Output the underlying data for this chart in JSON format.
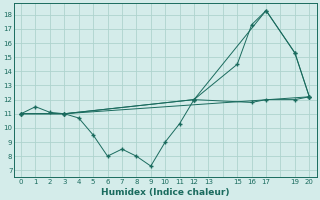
{
  "xlabel": "Humidex (Indice chaleur)",
  "bg_color": "#d4ecea",
  "grid_color": "#aed4ce",
  "line_color": "#1a6b5e",
  "xlim": [
    -0.5,
    20.5
  ],
  "ylim": [
    6.5,
    18.8
  ],
  "yticks": [
    7,
    8,
    9,
    10,
    11,
    12,
    13,
    14,
    15,
    16,
    17,
    18
  ],
  "xticks": [
    0,
    1,
    2,
    3,
    4,
    5,
    6,
    7,
    8,
    9,
    10,
    11,
    12,
    13,
    14,
    15,
    16,
    17,
    18,
    19,
    20
  ],
  "xtick_labels": [
    "0",
    "1",
    "2",
    "3",
    "4",
    "5",
    "6",
    "7",
    "8",
    "9",
    "10",
    "11",
    "12",
    "13",
    "",
    "15",
    "16",
    "17",
    "",
    "19",
    "20"
  ],
  "series": [
    {
      "x": [
        0,
        1,
        2,
        3,
        4,
        5,
        6,
        7,
        8,
        9,
        10,
        11,
        12,
        15,
        16,
        17,
        19,
        20
      ],
      "y": [
        11.0,
        11.5,
        11.1,
        11.0,
        10.7,
        9.5,
        8.0,
        8.5,
        8.0,
        7.3,
        9.0,
        10.3,
        12.0,
        14.5,
        17.3,
        18.3,
        15.3,
        12.2
      ]
    },
    {
      "x": [
        0,
        3,
        20
      ],
      "y": [
        11.0,
        11.0,
        12.2
      ]
    },
    {
      "x": [
        0,
        3,
        12,
        17,
        19,
        20
      ],
      "y": [
        11.0,
        11.0,
        12.0,
        18.3,
        15.3,
        12.2
      ]
    },
    {
      "x": [
        0,
        3,
        12,
        16,
        17,
        19,
        20
      ],
      "y": [
        11.0,
        11.0,
        12.0,
        11.8,
        12.0,
        12.0,
        12.2
      ]
    }
  ]
}
